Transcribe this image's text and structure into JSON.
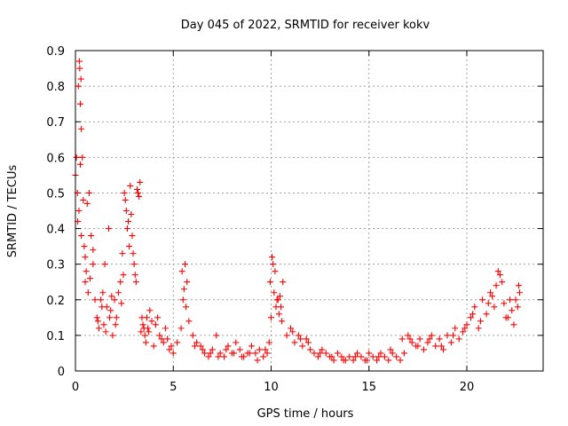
{
  "chart_data": {
    "type": "scatter",
    "title": "Day 045 of 2022, SRMTID for receiver kokv",
    "xlabel": "GPS time / hours",
    "ylabel": "SRMTID / TECUs",
    "xlim": [
      0,
      23.9
    ],
    "ylim": [
      0,
      0.9
    ],
    "x_ticks": [
      0,
      5,
      10,
      15,
      20
    ],
    "y_ticks": [
      0,
      0.1,
      0.2,
      0.3,
      0.4,
      0.5,
      0.6,
      0.7,
      0.8,
      0.9
    ],
    "x_tick_labels": [
      "0",
      "5",
      "10",
      "15",
      "20"
    ],
    "y_tick_labels": [
      "0",
      "0.1",
      "0.2",
      "0.3",
      "0.4",
      "0.5",
      "0.6",
      "0.7",
      "0.8",
      "0.9"
    ],
    "grid": true,
    "marker": "+",
    "color": "#ff0000",
    "series": [
      {
        "name": "SRMTID",
        "x": [
          0.0,
          0.05,
          0.1,
          0.15,
          0.2,
          0.22,
          0.25,
          0.28,
          0.3,
          0.35,
          0.4,
          0.45,
          0.5,
          0.55,
          0.6,
          0.7,
          0.8,
          0.9,
          1.0,
          1.1,
          1.2,
          1.3,
          1.4,
          1.5,
          1.6,
          1.7,
          1.75,
          1.8,
          1.9,
          2.0,
          2.1,
          2.2,
          2.3,
          2.4,
          2.5,
          2.6,
          2.7,
          2.8,
          2.9,
          3.0,
          3.1,
          3.2,
          3.3,
          3.4,
          3.5,
          3.6,
          3.7,
          3.8,
          3.9,
          4.0,
          4.2,
          4.4,
          4.6,
          4.8,
          5.0,
          5.2,
          5.4,
          5.5,
          5.6,
          5.7,
          5.8,
          6.0,
          6.2,
          6.4,
          6.6,
          6.8,
          7.0,
          7.2,
          7.4,
          7.6,
          7.8,
          8.0,
          8.2,
          8.4,
          8.6,
          8.8,
          9.0,
          9.2,
          9.4,
          9.6,
          9.8,
          9.9,
          10.0,
          10.1,
          10.2,
          10.3,
          10.4,
          10.5,
          10.6,
          10.8,
          11.0,
          11.2,
          11.4,
          11.6,
          11.8,
          12.0,
          12.2,
          12.4,
          12.6,
          12.8,
          13.0,
          13.2,
          13.4,
          13.6,
          13.8,
          14.0,
          14.2,
          14.4,
          14.6,
          14.8,
          15.0,
          15.2,
          15.4,
          15.6,
          15.8,
          16.0,
          16.2,
          16.4,
          16.6,
          16.8,
          17.0,
          17.2,
          17.4,
          17.6,
          17.8,
          18.0,
          18.2,
          18.4,
          18.6,
          18.8,
          19.0,
          19.2,
          19.4,
          19.6,
          19.8,
          20.0,
          20.2,
          20.4,
          20.6,
          20.8,
          21.0,
          21.2,
          21.4,
          21.6,
          21.8,
          22.0,
          22.2,
          22.4,
          22.6,
          22.7,
          0.12,
          0.25,
          0.18,
          0.3,
          0.5,
          0.65,
          0.75,
          0.9,
          1.15,
          1.35,
          1.45,
          1.55,
          1.85,
          2.05,
          2.35,
          2.45,
          2.55,
          2.65,
          2.75,
          2.85,
          2.95,
          3.05,
          3.15,
          3.25,
          3.35,
          3.45,
          3.55,
          3.65,
          3.75,
          4.1,
          4.3,
          4.5,
          4.7,
          4.9,
          5.45,
          5.55,
          5.65,
          6.1,
          6.5,
          6.9,
          7.3,
          7.7,
          8.1,
          8.5,
          8.9,
          9.3,
          9.7,
          9.95,
          10.05,
          10.15,
          10.25,
          10.35,
          10.45,
          10.55,
          11.1,
          11.5,
          11.9,
          12.5,
          13.1,
          13.7,
          14.3,
          14.9,
          15.5,
          16.1,
          16.7,
          17.1,
          17.5,
          18.1,
          18.7,
          19.3,
          19.9,
          20.3,
          20.7,
          21.1,
          21.3,
          21.5,
          21.7,
          21.9,
          22.1,
          22.3,
          22.5,
          22.65
        ],
        "y": [
          0.55,
          0.6,
          0.5,
          0.8,
          0.87,
          0.85,
          0.75,
          0.82,
          0.68,
          0.6,
          0.48,
          0.35,
          0.25,
          0.28,
          0.47,
          0.5,
          0.38,
          0.3,
          0.2,
          0.15,
          0.12,
          0.2,
          0.22,
          0.3,
          0.18,
          0.4,
          0.15,
          0.17,
          0.1,
          0.2,
          0.15,
          0.22,
          0.25,
          0.33,
          0.5,
          0.45,
          0.42,
          0.52,
          0.38,
          0.3,
          0.25,
          0.5,
          0.53,
          0.15,
          0.12,
          0.08,
          0.12,
          0.17,
          0.14,
          0.07,
          0.15,
          0.09,
          0.12,
          0.06,
          0.05,
          0.08,
          0.12,
          0.2,
          0.3,
          0.25,
          0.14,
          0.1,
          0.08,
          0.07,
          0.05,
          0.04,
          0.06,
          0.1,
          0.05,
          0.04,
          0.07,
          0.05,
          0.08,
          0.06,
          0.04,
          0.05,
          0.07,
          0.05,
          0.06,
          0.04,
          0.05,
          0.08,
          0.15,
          0.3,
          0.28,
          0.2,
          0.16,
          0.18,
          0.25,
          0.1,
          0.12,
          0.08,
          0.1,
          0.07,
          0.09,
          0.06,
          0.05,
          0.04,
          0.06,
          0.05,
          0.04,
          0.03,
          0.05,
          0.04,
          0.03,
          0.04,
          0.03,
          0.05,
          0.04,
          0.03,
          0.05,
          0.04,
          0.03,
          0.05,
          0.04,
          0.03,
          0.05,
          0.04,
          0.03,
          0.05,
          0.1,
          0.08,
          0.07,
          0.09,
          0.06,
          0.08,
          0.1,
          0.07,
          0.09,
          0.06,
          0.1,
          0.08,
          0.12,
          0.09,
          0.11,
          0.13,
          0.15,
          0.18,
          0.12,
          0.2,
          0.16,
          0.22,
          0.18,
          0.28,
          0.25,
          0.15,
          0.2,
          0.13,
          0.18,
          0.22,
          0.42,
          0.58,
          0.45,
          0.38,
          0.32,
          0.22,
          0.26,
          0.34,
          0.14,
          0.18,
          0.13,
          0.11,
          0.21,
          0.13,
          0.19,
          0.27,
          0.48,
          0.4,
          0.35,
          0.44,
          0.33,
          0.27,
          0.51,
          0.49,
          0.11,
          0.13,
          0.1,
          0.15,
          0.11,
          0.13,
          0.1,
          0.08,
          0.09,
          0.07,
          0.28,
          0.23,
          0.18,
          0.07,
          0.06,
          0.05,
          0.04,
          0.06,
          0.05,
          0.04,
          0.05,
          0.03,
          0.06,
          0.25,
          0.32,
          0.22,
          0.18,
          0.2,
          0.21,
          0.14,
          0.11,
          0.09,
          0.08,
          0.05,
          0.04,
          0.03,
          0.04,
          0.03,
          0.04,
          0.06,
          0.09,
          0.09,
          0.07,
          0.09,
          0.07,
          0.1,
          0.12,
          0.16,
          0.14,
          0.19,
          0.21,
          0.24,
          0.27,
          0.19,
          0.15,
          0.17,
          0.2,
          0.24
        ]
      }
    ]
  }
}
